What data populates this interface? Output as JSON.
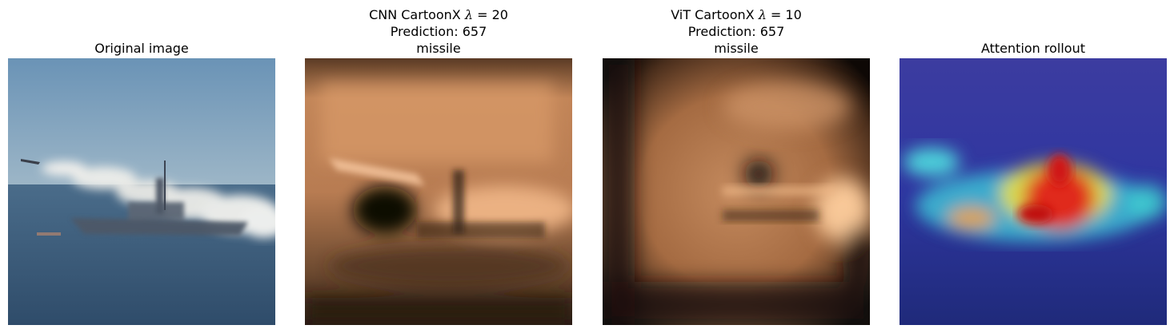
{
  "panels": [
    {
      "title_lines": [
        "Original image"
      ],
      "image": "original-photo",
      "colors": {
        "sky": "#6f94b3",
        "sea": "#3a5a78",
        "smoke": "#f2f2ee",
        "ship": "#4c5866"
      }
    },
    {
      "title_parts": {
        "prefix": "CNN CartoonX ",
        "lambda": "λ",
        "suffix": " = 20"
      },
      "title_lines": [
        "Prediction: 657",
        "missile"
      ],
      "image": "cnn-cartoonx-mask",
      "colors": {
        "bright": "#f4b585",
        "mid": "#c98a5e",
        "dark": "#1a0f08"
      }
    },
    {
      "title_parts": {
        "prefix": "ViT CartoonX ",
        "lambda": "λ",
        "suffix": " = 10"
      },
      "title_lines": [
        "Prediction: 657",
        "missile"
      ],
      "image": "vit-cartoonx-mask",
      "colors": {
        "bright": "#f6c090",
        "mid": "#b5764c",
        "dark": "#0e0805"
      }
    },
    {
      "title_lines": [
        "Attention rollout"
      ],
      "image": "attention-rollout-heatmap",
      "colors": {
        "background": "#3a3aa0",
        "hot": "#e01a1a",
        "warm": "#f0e040",
        "cool": "#40e0e0"
      }
    }
  ]
}
